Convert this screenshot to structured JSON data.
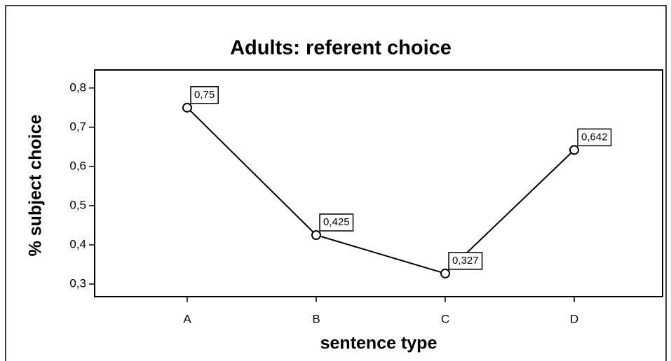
{
  "chart_data": {
    "type": "line",
    "title": "Adults: referent choice",
    "xlabel": "sentence type",
    "ylabel": "% subject choice",
    "categories": [
      "A",
      "B",
      "C",
      "D"
    ],
    "series": [
      {
        "name": "% subject choice",
        "color": "#000000",
        "values": [
          0.75,
          0.425,
          0.327,
          0.642
        ],
        "value_labels": [
          "0,75",
          "0,425",
          "0,327",
          "0,642"
        ]
      }
    ],
    "ylim": [
      0.268,
      0.846
    ],
    "yticks": [
      {
        "value": 0.3,
        "label": "0,3"
      },
      {
        "value": 0.4,
        "label": "0,4"
      },
      {
        "value": 0.5,
        "label": "0,5"
      },
      {
        "value": 0.6,
        "label": "0,6"
      },
      {
        "value": 0.7,
        "label": "0,7"
      },
      {
        "value": 0.8,
        "label": "0,8"
      }
    ],
    "grid": false
  }
}
